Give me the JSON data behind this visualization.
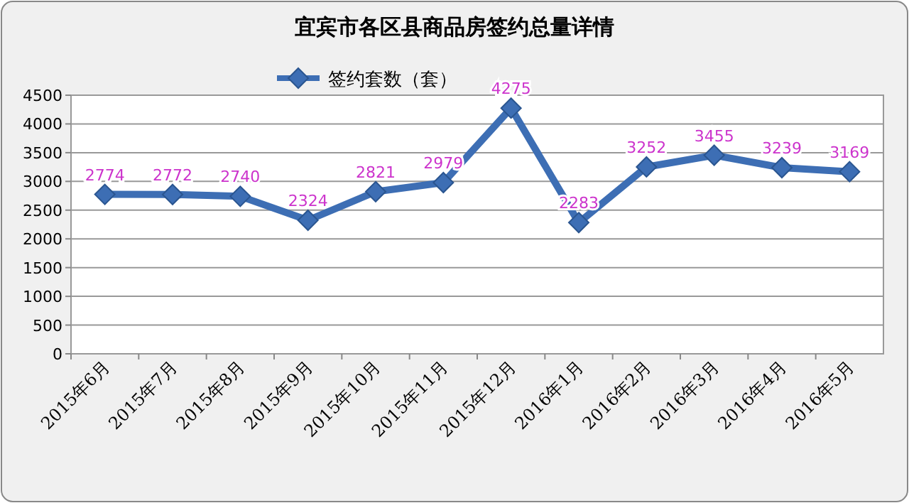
{
  "chart_data": {
    "type": "line",
    "title": "宜宾市各区县商品房签约总量详情",
    "categories": [
      "2015年6月",
      "2015年7月",
      "2015年8月",
      "2015年9月",
      "2015年10月",
      "2015年11月",
      "2015年12月",
      "2016年1月",
      "2016年2月",
      "2016年3月",
      "2016年4月",
      "2016年5月"
    ],
    "series": [
      {
        "name": "签约套数（套）",
        "color": "#3d6eb4",
        "values": [
          2774,
          2772,
          2740,
          2324,
          2821,
          2979,
          4275,
          2283,
          3252,
          3455,
          3239,
          3169
        ]
      }
    ],
    "ylim": [
      0,
      4500
    ],
    "yticks": [
      0,
      500,
      1000,
      1500,
      2000,
      2500,
      3000,
      3500,
      4000,
      4500
    ],
    "grid": "y",
    "legend": "top",
    "marker": "diamond",
    "line_style": "solid",
    "data_labels": true
  }
}
